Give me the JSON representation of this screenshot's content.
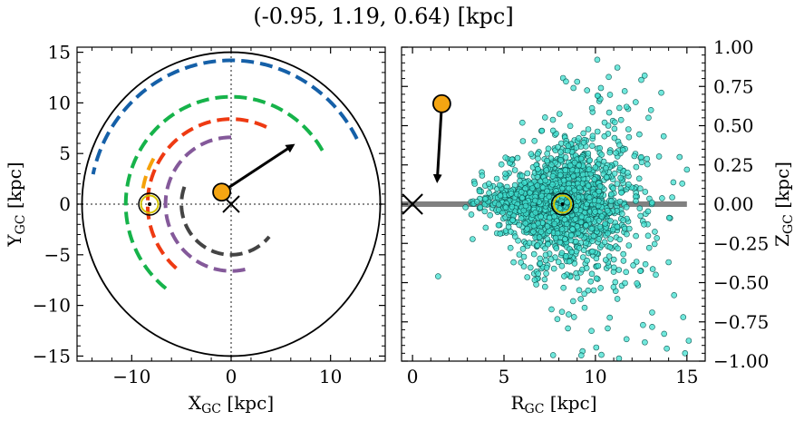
{
  "figure": {
    "title": "(-0.95, 1.19, 0.64) [kpc]"
  },
  "chart_data": [
    {
      "type": "line",
      "title": "",
      "xlabel": "X",
      "xlabel_sub": "GC",
      "xlabel_unit": " [kpc]",
      "ylabel": "Y",
      "ylabel_sub": "GC",
      "ylabel_unit": " [kpc]",
      "xlim": [
        -15.5,
        15.5
      ],
      "ylim": [
        -15.5,
        15.5
      ],
      "xticks": [
        -10,
        0,
        10
      ],
      "xtick_labels": [
        "−10",
        "0",
        "10"
      ],
      "yticks": [
        -15,
        -10,
        -5,
        0,
        5,
        10,
        15
      ],
      "ytick_labels": [
        "−15",
        "−10",
        "−5",
        "0",
        "5",
        "10",
        "15"
      ],
      "boundary_circle_radius": 15,
      "reference_lines": {
        "x": 0,
        "y": 0,
        "style": "dotted"
      },
      "arcs": [
        {
          "radius": 14.2,
          "start_deg": 27,
          "end_deg": 168,
          "color": "#1560a8"
        },
        {
          "radius": 10.6,
          "start_deg": 30,
          "end_deg": 232,
          "color": "#16b34a"
        },
        {
          "radius": 8.4,
          "start_deg": 65,
          "end_deg": 232,
          "color": "#ee3a12"
        },
        {
          "radius": 6.6,
          "start_deg": 90,
          "end_deg": 285,
          "color": "#84599a"
        },
        {
          "radius": 5.0,
          "start_deg": 160,
          "end_deg": 320,
          "color": "#444444"
        },
        {
          "radius": 9.0,
          "start_deg": 150,
          "end_deg": 170,
          "color": "#f5a10a"
        }
      ],
      "sun": {
        "x": -8.2,
        "y": 0.0
      },
      "object": {
        "x": -0.95,
        "y": 1.19,
        "color": "#f5a512"
      },
      "galactic_center": {
        "x": 0,
        "y": 0
      },
      "velocity_arrow": {
        "x0": -0.95,
        "y0": 1.19,
        "x1": 6.2,
        "y1": 5.8
      }
    },
    {
      "type": "scatter",
      "title": "",
      "xlabel": "R",
      "xlabel_sub": "GC",
      "xlabel_unit": " [kpc]",
      "ylabel": "Z",
      "ylabel_sub": "GC",
      "ylabel_unit": " [kpc]",
      "ylabel_position": "right",
      "xlim": [
        -0.6,
        16.0
      ],
      "ylim": [
        -1.0,
        1.0
      ],
      "xticks": [
        0,
        5,
        10,
        15
      ],
      "xtick_labels": [
        "0",
        "5",
        "10",
        "15"
      ],
      "yticks": [
        -1.0,
        -0.75,
        -0.5,
        -0.25,
        0.0,
        0.25,
        0.5,
        0.75,
        1.0
      ],
      "ytick_labels": [
        "−1.00",
        "−0.75",
        "−0.50",
        "−0.25",
        "0.00",
        "0.25",
        "0.50",
        "0.75",
        "1.00"
      ],
      "disk_line": {
        "x0": -0.6,
        "x1": 15.0,
        "y": 0.0,
        "color": "#808080"
      },
      "scatter_color": "#40e0d0",
      "scatter_cluster": {
        "center_x": 8.2,
        "center_y": 0.0,
        "count": 1700
      },
      "outliers": [
        [
          1.4,
          -0.46
        ],
        [
          7.6,
          -0.67
        ],
        [
          10.1,
          0.92
        ],
        [
          11.2,
          0.87
        ],
        [
          11.6,
          0.72
        ],
        [
          8.8,
          0.74
        ],
        [
          9.0,
          0.78
        ],
        [
          10.3,
          0.74
        ],
        [
          11.7,
          0.62
        ],
        [
          12.2,
          0.65
        ],
        [
          13.6,
          0.71
        ],
        [
          14.3,
          -0.58
        ],
        [
          14.8,
          -0.72
        ],
        [
          14.9,
          -0.95
        ],
        [
          15.1,
          -0.87
        ],
        [
          13.9,
          -0.92
        ],
        [
          12.7,
          -0.88
        ],
        [
          11.7,
          -0.86
        ],
        [
          12.6,
          -0.77
        ],
        [
          13.1,
          -0.69
        ],
        [
          10.5,
          0.52
        ],
        [
          12.9,
          0.55
        ],
        [
          3.4,
          0.13
        ],
        [
          2.9,
          -0.02
        ],
        [
          4.0,
          -0.15
        ],
        [
          14.6,
          0.3
        ],
        [
          15.0,
          0.22
        ],
        [
          13.3,
          -0.45
        ],
        [
          14.0,
          -0.37
        ],
        [
          9.6,
          -0.55
        ]
      ],
      "sun": {
        "x": 8.2,
        "y": 0.0
      },
      "object": {
        "x": 1.6,
        "y": 0.64,
        "color": "#f5a512"
      },
      "galactic_center": {
        "x": 0,
        "y": 0
      },
      "velocity_arrow": {
        "x0": 1.6,
        "y0": 0.64,
        "x1": 1.35,
        "y1": 0.15
      }
    }
  ]
}
